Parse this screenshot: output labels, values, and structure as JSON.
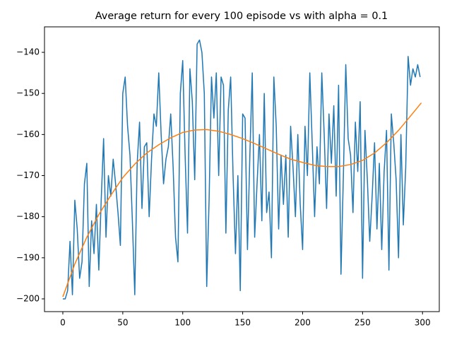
{
  "chart_data": {
    "type": "line",
    "title": "Average return for every 100 episode vs with alpha = 0.1",
    "xlim": [
      -15.3,
      314
    ],
    "ylim": [
      -203.1,
      -133.8
    ],
    "xticks": [
      0,
      50,
      100,
      150,
      200,
      250,
      300
    ],
    "yticks": [
      {
        "value": -200,
        "label": "−200"
      },
      {
        "value": -190,
        "label": "−190"
      },
      {
        "value": -180,
        "label": "−180"
      },
      {
        "value": -170,
        "label": "−170"
      },
      {
        "value": -160,
        "label": "−160"
      },
      {
        "value": -150,
        "label": "−150"
      },
      {
        "value": -140,
        "label": "−140"
      }
    ],
    "series": [
      {
        "color": "#1f77b4",
        "x": [
          0,
          2,
          4,
          6,
          8,
          10,
          12,
          14,
          16,
          18,
          20,
          22,
          24,
          26,
          28,
          30,
          32,
          34,
          36,
          38,
          40,
          42,
          44,
          46,
          48,
          50,
          52,
          54,
          56,
          58,
          60,
          62,
          64,
          66,
          68,
          70,
          72,
          74,
          76,
          78,
          80,
          82,
          84,
          86,
          88,
          90,
          92,
          94,
          96,
          98,
          100,
          102,
          104,
          106,
          108,
          110,
          112,
          114,
          116,
          118,
          120,
          122,
          124,
          126,
          128,
          130,
          132,
          134,
          136,
          138,
          140,
          142,
          144,
          146,
          148,
          150,
          152,
          154,
          156,
          158,
          160,
          162,
          164,
          166,
          168,
          170,
          172,
          174,
          176,
          178,
          180,
          182,
          184,
          186,
          188,
          190,
          192,
          194,
          196,
          198,
          200,
          202,
          204,
          206,
          208,
          210,
          212,
          214,
          216,
          218,
          220,
          222,
          224,
          226,
          228,
          230,
          232,
          234,
          236,
          238,
          240,
          242,
          244,
          246,
          248,
          250,
          252,
          254,
          256,
          258,
          260,
          262,
          264,
          266,
          268,
          270,
          272,
          274,
          276,
          278,
          280,
          282,
          284,
          286,
          288,
          290,
          292,
          294,
          296,
          298
        ],
        "values": [
          -200,
          -200,
          -198,
          -186,
          -199,
          -176,
          -183,
          -195,
          -191,
          -172,
          -167,
          -197,
          -181,
          -189,
          -177,
          -193,
          -176,
          -161,
          -185,
          -170,
          -175,
          -166,
          -172,
          -179,
          -187,
          -150,
          -146,
          -158,
          -165,
          -181,
          -199,
          -167,
          -157,
          -178,
          -163,
          -162,
          -180,
          -166,
          -155,
          -158,
          -145,
          -160,
          -172,
          -166,
          -163,
          -155,
          -168,
          -185,
          -191,
          -150,
          -142,
          -165,
          -184,
          -144,
          -152,
          -171,
          -138,
          -137,
          -140,
          -150,
          -197,
          -176,
          -146,
          -156,
          -145,
          -170,
          -146,
          -148,
          -184,
          -154,
          -146,
          -170,
          -189,
          -170,
          -198,
          -155,
          -156,
          -188,
          -165,
          -145,
          -185,
          -172,
          -160,
          -181,
          -150,
          -179,
          -174,
          -190,
          -146,
          -158,
          -183,
          -165,
          -177,
          -165,
          -185,
          -158,
          -168,
          -180,
          -160,
          -177,
          -188,
          -158,
          -170,
          -145,
          -162,
          -180,
          -163,
          -172,
          -145,
          -160,
          -178,
          -155,
          -167,
          -153,
          -175,
          -148,
          -194,
          -170,
          -143,
          -161,
          -165,
          -179,
          -157,
          -169,
          -152,
          -195,
          -159,
          -171,
          -186,
          -175,
          -162,
          -183,
          -167,
          -188,
          -169,
          -159,
          -193,
          -155,
          -162,
          -171,
          -190,
          -160,
          -182,
          -168,
          -141,
          -148,
          -144,
          -146,
          -143,
          -146
        ]
      },
      {
        "color": "#ff7f0e",
        "x": [
          0,
          10,
          20,
          30,
          40,
          50,
          60,
          70,
          80,
          90,
          100,
          110,
          120,
          130,
          140,
          150,
          160,
          170,
          180,
          190,
          200,
          210,
          220,
          230,
          240,
          250,
          260,
          270,
          280,
          290,
          299
        ],
        "values": [
          -199.5,
          -191.5,
          -185,
          -179.5,
          -174.8,
          -170.5,
          -167.2,
          -164.5,
          -162.5,
          -160.8,
          -159.5,
          -158.9,
          -158.8,
          -159.2,
          -160,
          -161,
          -162.2,
          -163.5,
          -164.8,
          -166,
          -166.8,
          -167.5,
          -167.8,
          -167.8,
          -167.3,
          -166.3,
          -164.5,
          -162,
          -159,
          -155.5,
          -152.3
        ]
      }
    ]
  }
}
